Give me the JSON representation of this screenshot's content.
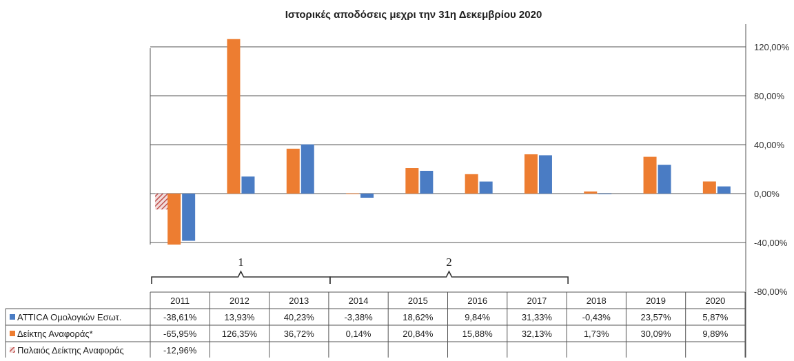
{
  "chart_data": {
    "type": "bar",
    "title": "Ιστορικές αποδόσεις μεχρι την 31η Δεκεμβρίου 2020",
    "categories": [
      "2011",
      "2012",
      "2013",
      "2014",
      "2015",
      "2016",
      "2017",
      "2018",
      "2019",
      "2020"
    ],
    "series": [
      {
        "name": "ATTICA Ομολογιών Εσωτ.",
        "color": "#4a7cc4",
        "values": [
          -38.61,
          13.93,
          40.23,
          -3.38,
          18.62,
          9.84,
          31.33,
          -0.43,
          23.57,
          5.87
        ],
        "labels": [
          "-38,61%",
          "13,93%",
          "40,23%",
          "-3,38%",
          "18,62%",
          "9,84%",
          "31,33%",
          "-0,43%",
          "23,57%",
          "5,87%"
        ]
      },
      {
        "name": "Δείκτης Αναφοράς*",
        "color": "#ed7d31",
        "values": [
          -65.95,
          126.35,
          36.72,
          0.14,
          20.84,
          15.88,
          32.13,
          1.73,
          30.09,
          9.89
        ],
        "labels": [
          "-65,95%",
          "126,35%",
          "36,72%",
          "0,14%",
          "20,84%",
          "15,88%",
          "32,13%",
          "1,73%",
          "30,09%",
          "9,89%"
        ]
      },
      {
        "name": "Παλαιός Δείκτης Αναφοράς",
        "color": "#c0504d",
        "pattern": "hatched",
        "values": [
          -12.96,
          null,
          null,
          null,
          null,
          null,
          null,
          null,
          null,
          null
        ],
        "labels": [
          "-12,96%",
          "",
          "",
          "",
          "",
          "",
          "",
          "",
          "",
          ""
        ]
      }
    ],
    "ylim": [
      -80,
      140
    ],
    "yticks": [
      {
        "value": 120,
        "label": "120,00%"
      },
      {
        "value": 80,
        "label": "80,00%"
      },
      {
        "value": 40,
        "label": "40,00%"
      },
      {
        "value": 0,
        "label": "0,00%"
      },
      {
        "value": -40,
        "label": "-40,00%"
      },
      {
        "value": -80,
        "label": "-80,00%"
      }
    ],
    "y_axis_side": "right",
    "grid": true,
    "legend": "data-table",
    "brackets": [
      {
        "label": "1",
        "from_category": "2011",
        "to_category": "2013"
      },
      {
        "label": "2",
        "from_category": "2014",
        "to_category": "2017"
      }
    ]
  }
}
